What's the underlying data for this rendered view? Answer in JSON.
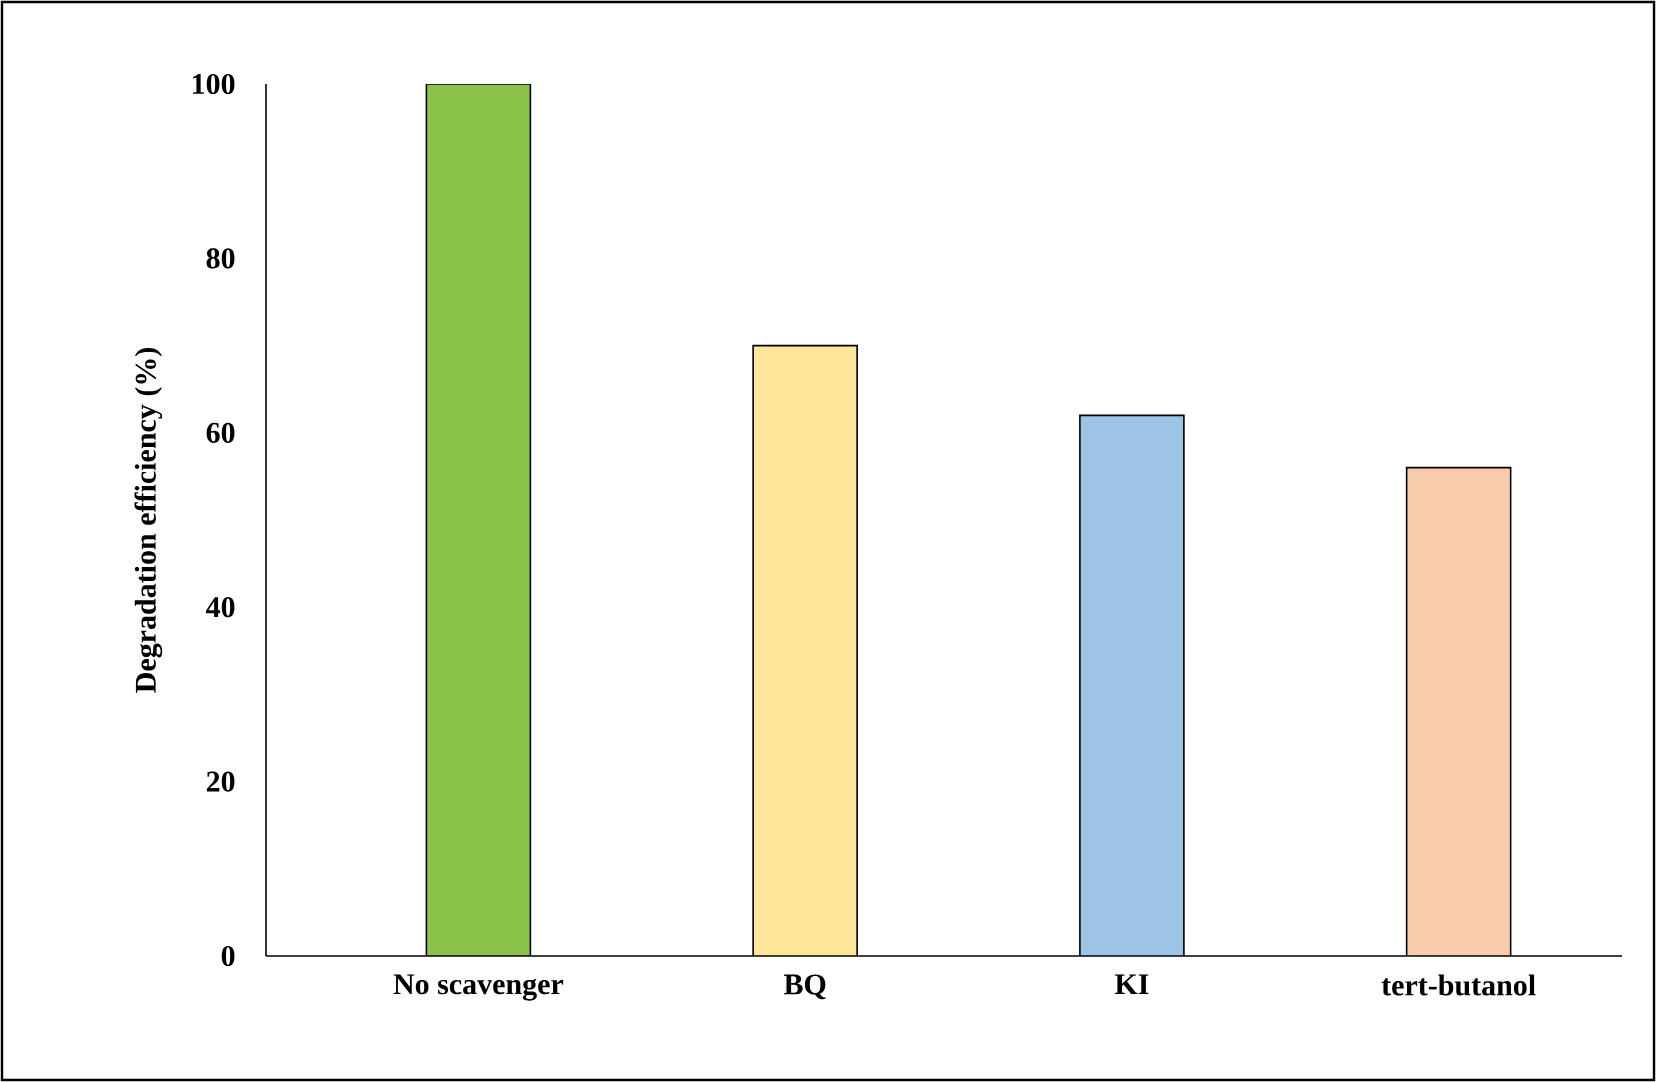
{
  "chart_data": {
    "type": "bar",
    "ylabel": "Degradation efficiency (%)",
    "categories": [
      "No scavenger",
      "BQ",
      "KI",
      "tert-butanol"
    ],
    "values": [
      100,
      70,
      62,
      56
    ],
    "colors": [
      "#8bc34a",
      "#ffe699",
      "#9dc3e6",
      "#f8cbad"
    ],
    "ylim": [
      0,
      100
    ],
    "yticks": [
      0,
      20,
      40,
      60,
      80,
      100
    ],
    "grid": false
  }
}
